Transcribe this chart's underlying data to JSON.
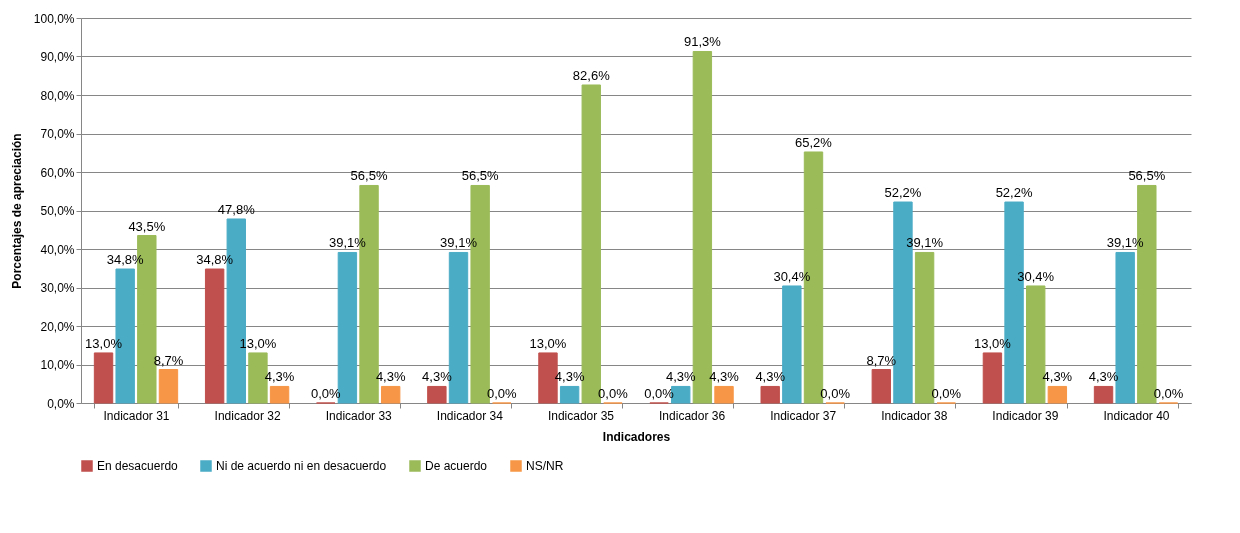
{
  "chart_data": {
    "type": "bar",
    "xlabel": "Indicadores",
    "ylabel": "Porcentajes de apreciación",
    "categories": [
      "Indicador 31",
      "Indicador 32",
      "Indicador 33",
      "Indicador 34",
      "Indicador 35",
      "Indicador 36",
      "Indicador 37",
      "Indicador 38",
      "Indicador 39",
      "Indicador 40"
    ],
    "series": [
      {
        "name": "En desacuerdo",
        "color": "#c0504d",
        "values": [
          13.0,
          34.8,
          0.0,
          4.3,
          13.0,
          0.0,
          4.3,
          8.7,
          13.0,
          4.3
        ],
        "value_labels": [
          "13,0%",
          "34,8%",
          "0,0%",
          "4,3%",
          "13,0%",
          "0,0%",
          "4,3%",
          "8,7%",
          "13,0%",
          "4,3%"
        ]
      },
      {
        "name": "Ni de acuerdo ni en desacuerdo",
        "color": "#4bacc6",
        "values": [
          34.8,
          47.8,
          39.1,
          39.1,
          4.3,
          4.3,
          30.4,
          52.2,
          52.2,
          39.1
        ],
        "value_labels": [
          "34,8%",
          "47,8%",
          "39,1%",
          "39,1%",
          "4,3%",
          "4,3%",
          "30,4%",
          "52,2%",
          "52,2%",
          "39,1%"
        ]
      },
      {
        "name": "De acuerdo",
        "color": "#9bbb59",
        "values": [
          43.5,
          13.0,
          56.5,
          56.5,
          82.6,
          91.3,
          65.2,
          39.1,
          30.4,
          56.5
        ],
        "value_labels": [
          "43,5%",
          "13,0%",
          "56,5%",
          "56,5%",
          "82,6%",
          "91,3%",
          "65,2%",
          "39,1%",
          "30,4%",
          "56,5%"
        ]
      },
      {
        "name": "NS/NR",
        "color": "#f79646",
        "values": [
          8.7,
          4.3,
          4.3,
          0.0,
          0.0,
          4.3,
          0.0,
          0.0,
          4.3,
          0.0
        ],
        "value_labels": [
          "8,7%",
          "4,3%",
          "4,3%",
          "0,0%",
          "0,0%",
          "4,3%",
          "0,0%",
          "0,0%",
          "4,3%",
          "0,0%"
        ]
      }
    ],
    "ylim": [
      0,
      100
    ],
    "yticks": [
      {
        "value": 0,
        "label": "0,0%"
      },
      {
        "value": 10,
        "label": "10,0%"
      },
      {
        "value": 20,
        "label": "20,0%"
      },
      {
        "value": 30,
        "label": "30,0%"
      },
      {
        "value": 40,
        "label": "40,0%"
      },
      {
        "value": 50,
        "label": "50,0%"
      },
      {
        "value": 60,
        "label": "60,0%"
      },
      {
        "value": 70,
        "label": "70,0%"
      },
      {
        "value": 80,
        "label": "80,0%"
      },
      {
        "value": 90,
        "label": "90,0%"
      },
      {
        "value": 100,
        "label": "100,0%"
      }
    ],
    "grid": "y",
    "legend": "bottom"
  }
}
